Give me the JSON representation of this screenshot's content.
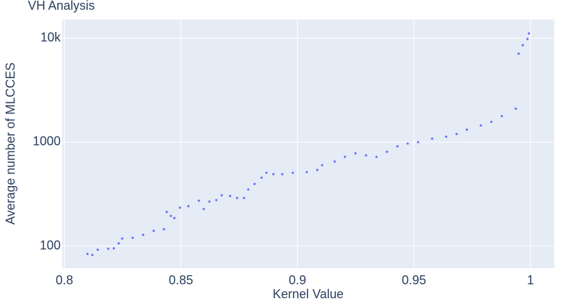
{
  "chart_data": {
    "type": "scatter",
    "title": "VH Analysis",
    "xlabel": "Kernel Value",
    "ylabel": "Average number of MLCCES",
    "series": [
      {
        "color": "#636efa",
        "x": [
          0.8099,
          0.812,
          0.8143,
          0.8188,
          0.8212,
          0.8233,
          0.8248,
          0.8293,
          0.8338,
          0.8383,
          0.8427,
          0.8439,
          0.8457,
          0.8472,
          0.8496,
          0.8532,
          0.8577,
          0.8598,
          0.8622,
          0.8652,
          0.8675,
          0.8711,
          0.8741,
          0.8771,
          0.8789,
          0.8816,
          0.8846,
          0.8867,
          0.8897,
          0.8935,
          0.898,
          0.904,
          0.9085,
          0.9106,
          0.916,
          0.9204,
          0.9249,
          0.9294,
          0.9339,
          0.9384,
          0.9429,
          0.9473,
          0.9518,
          0.9578,
          0.9638,
          0.9683,
          0.9727,
          0.9787,
          0.9832,
          0.9877,
          0.9937,
          0.9949,
          0.9967,
          0.9987,
          0.9993
        ],
        "values": [
          84,
          82,
          92,
          94,
          95,
          106,
          118,
          120,
          128,
          140,
          145,
          213,
          195,
          186,
          234,
          242,
          273,
          227,
          268,
          277,
          308,
          303,
          290,
          290,
          350,
          396,
          455,
          507,
          491,
          491,
          507,
          514,
          540,
          600,
          650,
          722,
          781,
          746,
          722,
          807,
          912,
          970,
          1000,
          1080,
          1130,
          1200,
          1320,
          1450,
          1570,
          1780,
          2100,
          7120,
          8580,
          9850,
          11140
        ]
      }
    ],
    "xlim": [
      0.799,
      1.0102
    ],
    "xticks": [
      0.8,
      0.85,
      0.9,
      0.95,
      1
    ],
    "ylim": [
      61,
      15170
    ],
    "ylog": true,
    "yticks": [
      100,
      1000,
      {
        "value": 10000,
        "label": "10k"
      }
    ],
    "grid": true,
    "background": "#e5ecf6"
  }
}
